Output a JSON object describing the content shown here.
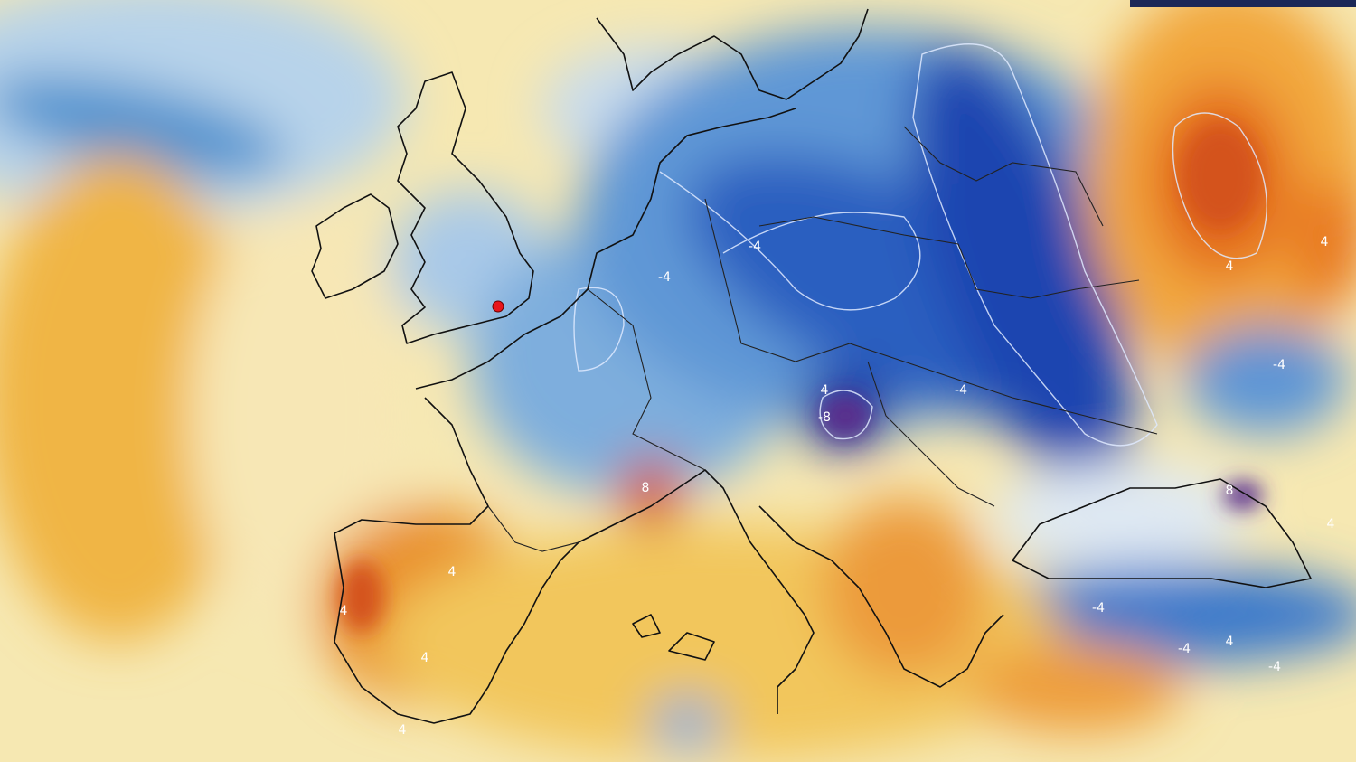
{
  "map": {
    "contour_labels": [
      -4,
      -4,
      4,
      4,
      -8,
      4,
      -4,
      -4,
      8,
      8,
      4,
      4,
      4,
      -4,
      -4,
      4,
      -4,
      4,
      4
    ]
  }
}
